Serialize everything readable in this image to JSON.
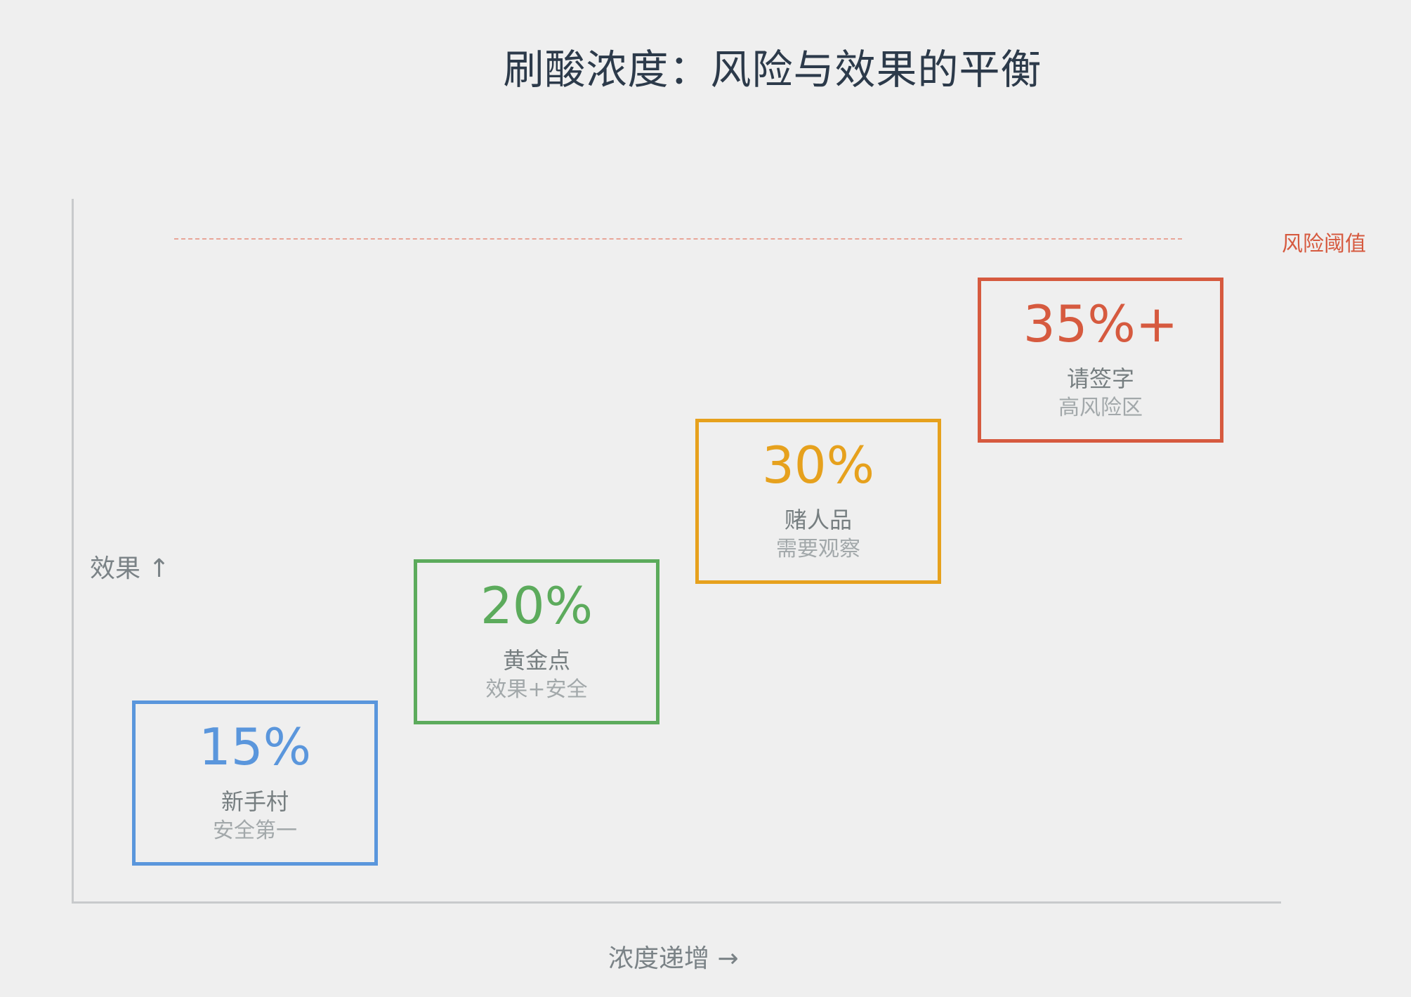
{
  "title": "刷酸浓度：风险与效果的平衡",
  "threshold_label": "风险阈值",
  "ylabel": "效果 ↑",
  "xlabel": "浓度递增 →",
  "colors": {
    "blue": "#5a96dc",
    "green": "#5cab5c",
    "orange": "#e6a11d",
    "red": "#d65a3f",
    "threshold": "#e8a597"
  },
  "steps": [
    {
      "percent": "15%",
      "name": "新手村",
      "desc": "安全第一",
      "color": "#5a96dc"
    },
    {
      "percent": "20%",
      "name": "黄金点",
      "desc": "效果+安全",
      "color": "#5cab5c"
    },
    {
      "percent": "30%",
      "name": "赌人品",
      "desc": "需要观察",
      "color": "#e6a11d"
    },
    {
      "percent": "35%+",
      "name": "请签字",
      "desc": "高风险区",
      "color": "#d65a3f"
    }
  ]
}
